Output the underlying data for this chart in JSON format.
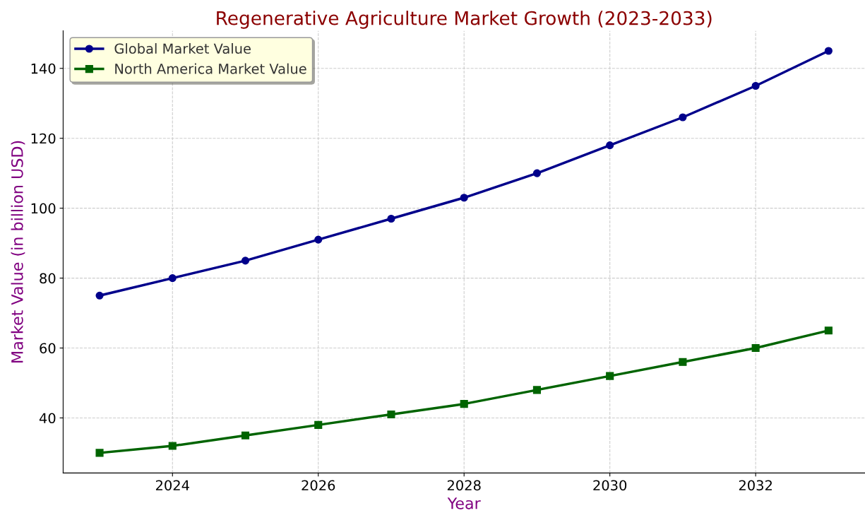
{
  "chart_data": {
    "type": "line",
    "title": "Regenerative Agriculture Market Growth (2023-2033)",
    "xlabel": "Year",
    "ylabel": "Market Value (in billion USD)",
    "x": [
      2023,
      2024,
      2025,
      2026,
      2027,
      2028,
      2029,
      2030,
      2031,
      2032,
      2033
    ],
    "series": [
      {
        "name": "Global Market Value",
        "color": "#00008b",
        "marker": "circle",
        "values": [
          75,
          80,
          85,
          91,
          97,
          103,
          110,
          118,
          126,
          135,
          145
        ]
      },
      {
        "name": "North America Market Value",
        "color": "#006400",
        "marker": "square",
        "values": [
          30,
          32,
          35,
          38,
          41,
          44,
          48,
          52,
          56,
          60,
          65
        ]
      }
    ],
    "xlim": [
      2022.5,
      2033.5
    ],
    "ylim": [
      24.25,
      150.75
    ],
    "xticks": [
      2024,
      2026,
      2028,
      2030,
      2032
    ],
    "yticks": [
      40,
      60,
      80,
      100,
      120,
      140
    ],
    "grid": true,
    "legend": "top left",
    "line_style": "solid"
  }
}
